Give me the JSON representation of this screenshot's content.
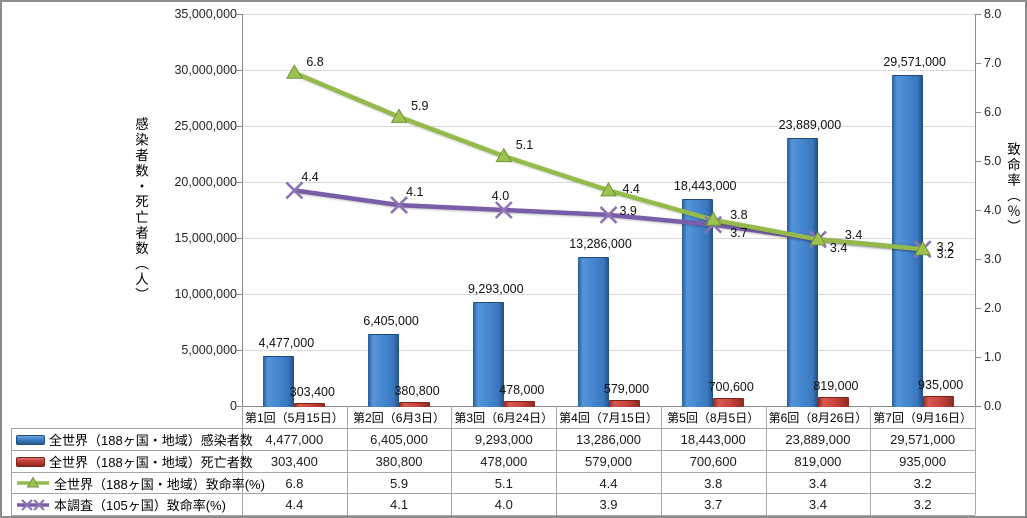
{
  "chart_data": {
    "type": "combo-bar-line",
    "categories": [
      "第1回（5月15日）",
      "第2回（6月3日）",
      "第3回（6月24日）",
      "第4回（7月15日）",
      "第5回（8月5日）",
      "第6回（8月26日）",
      "第7回（9月16日）"
    ],
    "series": [
      {
        "name": "全世界（188ヶ国・地域）感染者数",
        "type": "bar",
        "axis": "left",
        "color": "#3E7EC6",
        "values": [
          4477000,
          6405000,
          9293000,
          13286000,
          18443000,
          23889000,
          29571000
        ],
        "labels": [
          "4,477,000",
          "6,405,000",
          "9,293,000",
          "13,286,000",
          "18,443,000",
          "23,889,000",
          "29,571,000"
        ]
      },
      {
        "name": "全世界（188ヶ国・地域）死亡者数",
        "type": "bar",
        "axis": "left",
        "color": "#C0392F",
        "values": [
          303400,
          380800,
          478000,
          579000,
          700600,
          819000,
          935000
        ],
        "labels": [
          "303,400",
          "380,800",
          "478,000",
          "579,000",
          "700,600",
          "819,000",
          "935,000"
        ]
      },
      {
        "name": "全世界（188ヶ国・地域）致命率(%)",
        "type": "line",
        "marker": "triangle",
        "axis": "right",
        "color": "#94BA4A",
        "marker_fill": "#9CC24F",
        "marker_stroke": "#71923A",
        "values": [
          6.8,
          5.9,
          5.1,
          4.4,
          3.8,
          3.4,
          3.2
        ],
        "labels": [
          "6.8",
          "5.9",
          "5.1",
          "4.4",
          "3.8",
          "3.4",
          "3.2"
        ]
      },
      {
        "name": "本調査（105ヶ国）致命率(%)",
        "type": "line",
        "marker": "x",
        "axis": "right",
        "color": "#7A5DA8",
        "marker_fill": "#8D74B5",
        "marker_stroke": "#8D74B5",
        "values": [
          4.4,
          4.1,
          4.0,
          3.9,
          3.7,
          3.4,
          3.2
        ],
        "labels": [
          "4.4",
          "4.1",
          "4.0",
          "3.9",
          "3.7",
          "3.4",
          "3.2"
        ]
      }
    ],
    "left_axis": {
      "title": "感染者数・死亡者数（人）",
      "min": 0,
      "max": 35000000,
      "tick_labels": [
        "35,000,000",
        "30,000,000",
        "25,000,000",
        "20,000,000",
        "15,000,000",
        "10,000,000",
        "5,000,000",
        "0"
      ]
    },
    "right_axis": {
      "title": "致命率（％）",
      "min": 0,
      "max": 8,
      "tick_labels": [
        "8.0",
        "7.0",
        "6.0",
        "5.0",
        "4.0",
        "3.0",
        "2.0",
        "1.0",
        "0.0"
      ]
    },
    "grid": "horizontal",
    "legend_position": "table-left",
    "colors": {
      "gridline": "#D9D9D9",
      "axis_line": "#8C8C8C",
      "table_border": "#A6A6A6",
      "text": "#1F1F1F"
    }
  }
}
